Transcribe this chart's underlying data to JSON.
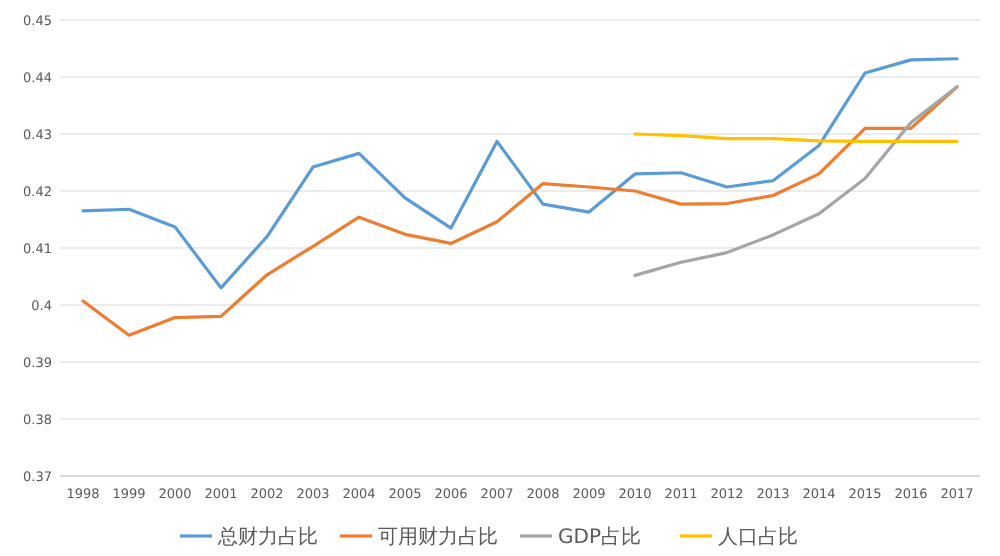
{
  "chart_data": {
    "type": "line",
    "categories": [
      "1998",
      "1999",
      "2000",
      "2001",
      "2002",
      "2003",
      "2004",
      "2005",
      "2006",
      "2007",
      "2008",
      "2009",
      "2010",
      "2011",
      "2012",
      "2013",
      "2014",
      "2015",
      "2016",
      "2017"
    ],
    "series": [
      {
        "name": "总财力占比",
        "color": "#5b9bd5",
        "values": [
          0.4165,
          0.4168,
          0.4137,
          0.403,
          0.412,
          0.4242,
          0.4266,
          0.4188,
          0.4135,
          0.4287,
          0.4177,
          0.4163,
          0.423,
          0.4232,
          0.4207,
          0.4218,
          0.428,
          0.4407,
          0.443,
          0.4432
        ]
      },
      {
        "name": "可用财力占比",
        "color": "#ed7d31",
        "values": [
          0.4007,
          0.3947,
          0.3978,
          0.398,
          0.4053,
          0.4103,
          0.4154,
          0.4124,
          0.4108,
          0.4146,
          0.4213,
          0.4207,
          0.42,
          0.4177,
          0.4178,
          0.4192,
          0.423,
          0.431,
          0.431,
          0.4383
        ]
      },
      {
        "name": "GDP占比",
        "color": "#a5a5a5",
        "values": [
          null,
          null,
          null,
          null,
          null,
          null,
          null,
          null,
          null,
          null,
          null,
          null,
          0.4052,
          0.4075,
          0.4092,
          0.4123,
          0.416,
          0.4222,
          0.432,
          0.4383
        ]
      },
      {
        "name": "人口占比",
        "color": "#ffc000",
        "values": [
          null,
          null,
          null,
          null,
          null,
          null,
          null,
          null,
          null,
          null,
          null,
          null,
          0.43,
          0.4297,
          0.4292,
          0.4292,
          0.4288,
          0.4287,
          0.4287,
          0.4287
        ]
      }
    ],
    "ylim": [
      0.37,
      0.45
    ],
    "yticks": [
      0.37,
      0.38,
      0.39,
      0.4,
      0.41,
      0.42,
      0.43,
      0.44,
      0.45
    ],
    "grid": "y",
    "legend": "bottom",
    "marker": "none",
    "line_style": "solid"
  }
}
